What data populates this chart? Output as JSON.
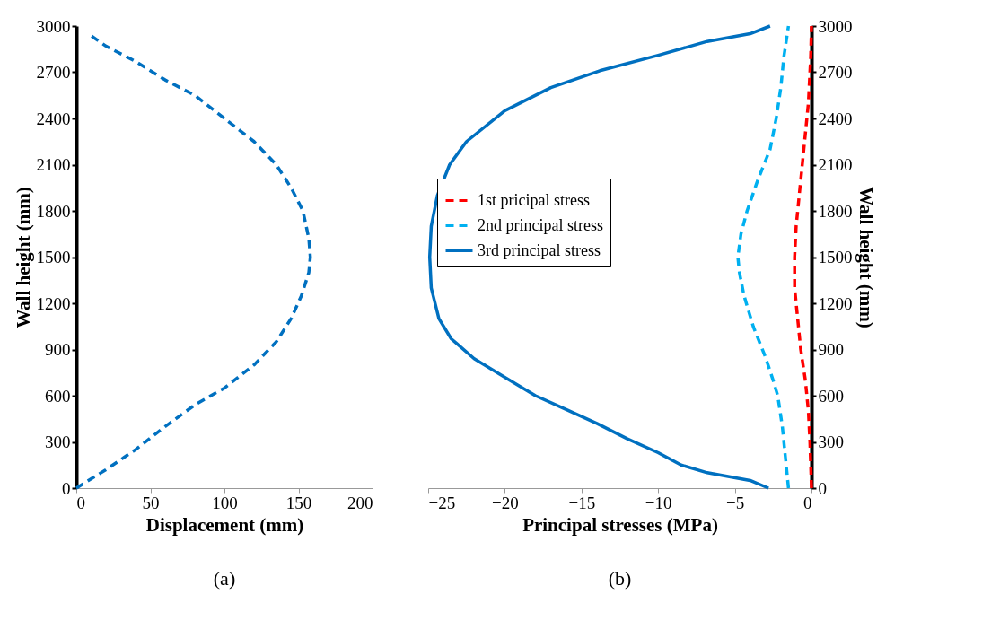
{
  "chart_data": [
    {
      "type": "line",
      "xlabel": "Displacement (mm)",
      "ylabel": "Wall height (mm)",
      "annotations": [
        "(a)"
      ],
      "xlim": [
        0,
        200
      ],
      "xticks": [
        0,
        50,
        100,
        150,
        200
      ],
      "ylim": [
        0,
        3000
      ],
      "yticks": [
        0,
        300,
        600,
        900,
        1200,
        1500,
        1800,
        2100,
        2400,
        2700,
        3000
      ],
      "grid": false,
      "legend": false,
      "line_style": "dashed",
      "series": [
        {
          "color": "#0070c0",
          "x": [
            0,
            20,
            40,
            60,
            80,
            100,
            120,
            135,
            145,
            152,
            157,
            158,
            157,
            153,
            145,
            135,
            120,
            100,
            80,
            60,
            40,
            20,
            8
          ],
          "values": [
            0,
            120,
            250,
            400,
            540,
            650,
            800,
            950,
            1100,
            1250,
            1400,
            1500,
            1620,
            1800,
            1950,
            2100,
            2250,
            2400,
            2550,
            2650,
            2770,
            2870,
            2950
          ]
        }
      ]
    },
    {
      "type": "line",
      "xlabel": "Principal stresses (MPa)",
      "ylabel": "Wall height (mm)",
      "annotations": [
        "(b)"
      ],
      "xlim": [
        -25,
        0
      ],
      "xticks": [
        -25,
        -20,
        -15,
        -10,
        -5,
        0
      ],
      "ylim": [
        0,
        3000
      ],
      "yticks": [
        0,
        300,
        600,
        900,
        1200,
        1500,
        1800,
        2100,
        2400,
        2700,
        3000
      ],
      "grid": false,
      "legend": "left",
      "series": [
        {
          "name": "1st pricipal stress",
          "color": "#ff0000",
          "line_style": "dashed",
          "x": [
            0,
            -0.1,
            -0.2,
            -0.4,
            -0.7,
            -0.9,
            -1.1,
            -1.1,
            -1,
            -0.8,
            -0.5,
            -0.2,
            -0.05,
            0
          ],
          "values": [
            0,
            300,
            500,
            700,
            900,
            1100,
            1300,
            1500,
            1700,
            1900,
            2200,
            2500,
            2800,
            3000
          ]
        },
        {
          "name": "2nd principal stress",
          "color": "#00b0f0",
          "line_style": "dashed",
          "x": [
            -1.5,
            -1.7,
            -1.9,
            -2.2,
            -2.5,
            -3,
            -3.8,
            -4.4,
            -4.7,
            -4.8,
            -4.6,
            -4.2,
            -3.5,
            -2.7,
            -2.3,
            -2,
            -1.8,
            -1.5
          ],
          "values": [
            0,
            200,
            400,
            600,
            700,
            850,
            1050,
            1250,
            1400,
            1500,
            1650,
            1800,
            2000,
            2200,
            2400,
            2600,
            2800,
            3000
          ]
        },
        {
          "name": "3rd principal stress",
          "color": "#0070c0",
          "line_style": "solid",
          "x": [
            -2.8,
            -4,
            -6.8,
            -8.5,
            -10,
            -12,
            -14,
            -16,
            -18,
            -20,
            -22,
            -23.5,
            -24.3,
            -24.8,
            -24.9,
            -24.8,
            -24.4,
            -23.6,
            -22.5,
            -20,
            -17,
            -13.8,
            -10,
            -6.8,
            -4,
            -2.7
          ],
          "values": [
            0,
            50,
            100,
            150,
            230,
            320,
            420,
            510,
            600,
            720,
            840,
            970,
            1100,
            1300,
            1500,
            1700,
            1900,
            2100,
            2250,
            2450,
            2600,
            2710,
            2810,
            2900,
            2950,
            3000
          ]
        }
      ]
    }
  ]
}
